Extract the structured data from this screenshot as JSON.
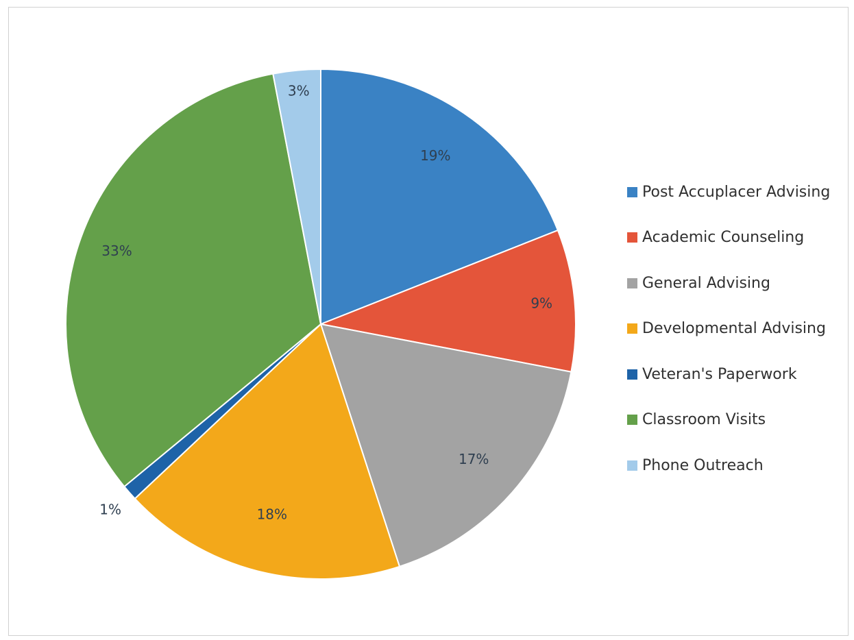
{
  "chart_data": {
    "type": "pie",
    "title": "",
    "categories": [
      "Post Accuplacer Advising",
      "Academic Counseling",
      "General Advising",
      "Developmental Advising",
      "Veteran's Paperwork",
      "Classroom Visits",
      "Phone Outreach"
    ],
    "values": [
      19,
      9,
      17,
      18,
      1,
      33,
      3
    ],
    "data_labels": [
      "19%",
      "9%",
      "17%",
      "18%",
      "1%",
      "33%",
      "3%"
    ],
    "colors": [
      "#3a82c4",
      "#e4553a",
      "#a3a3a3",
      "#f3a81a",
      "#1e63a8",
      "#64a04a",
      "#a3cbea"
    ],
    "label_colors": [
      "#2f3f50",
      "#2f3f50",
      "#2f3f50",
      "#2f3f50",
      "#2f3f50",
      "#2f3f50",
      "#2f3f50"
    ],
    "legend_position": "right",
    "start_angle_deg": 0,
    "direction": "clockwise"
  }
}
